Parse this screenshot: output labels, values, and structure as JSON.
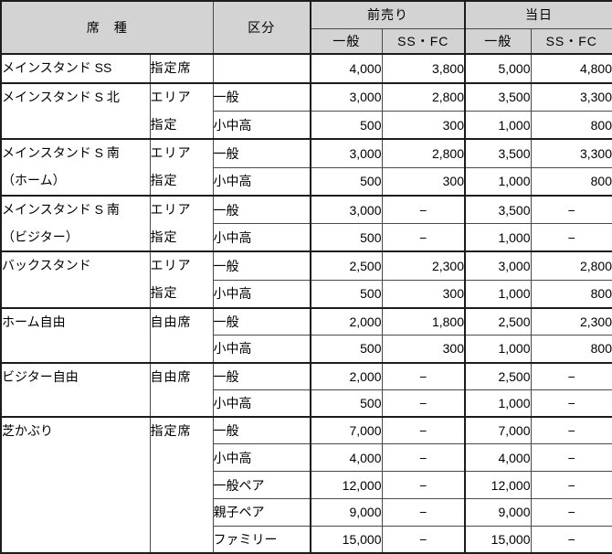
{
  "table": {
    "header": {
      "seat_type": "席　種",
      "category": "区分",
      "advance": "前売り",
      "same_day": "当日",
      "sub": {
        "general": "一般",
        "ss_fc": "SS・FC"
      }
    },
    "dash": "−",
    "groups": [
      {
        "seat": "メインスタンド SS",
        "type": "指定席",
        "rows": [
          {
            "category": "",
            "prices": [
              "4,000",
              "3,800",
              "5,000",
              "4,800"
            ]
          }
        ]
      },
      {
        "seat": "メインスタンド S 北",
        "type": "エリア\n指定",
        "rows": [
          {
            "category": "一般",
            "prices": [
              "3,000",
              "2,800",
              "3,500",
              "3,300"
            ]
          },
          {
            "category": "小中高",
            "prices": [
              "500",
              "300",
              "1,000",
              "800"
            ]
          }
        ]
      },
      {
        "seat": "メインスタンド S 南\n（ホーム）",
        "type": "エリア\n指定",
        "rows": [
          {
            "category": "一般",
            "prices": [
              "3,000",
              "2,800",
              "3,500",
              "3,300"
            ]
          },
          {
            "category": "小中高",
            "prices": [
              "500",
              "300",
              "1,000",
              "800"
            ]
          }
        ]
      },
      {
        "seat": "メインスタンド S 南\n（ビジター）",
        "type": "エリア\n指定",
        "rows": [
          {
            "category": "一般",
            "prices": [
              "3,000",
              "−",
              "3,500",
              "−"
            ]
          },
          {
            "category": "小中高",
            "prices": [
              "500",
              "−",
              "1,000",
              "−"
            ]
          }
        ]
      },
      {
        "seat": "バックスタンド",
        "type": "エリア\n指定",
        "rows": [
          {
            "category": "一般",
            "prices": [
              "2,500",
              "2,300",
              "3,000",
              "2,800"
            ]
          },
          {
            "category": "小中高",
            "prices": [
              "500",
              "300",
              "1,000",
              "800"
            ]
          }
        ]
      },
      {
        "seat": "ホーム自由",
        "type": "自由席",
        "rows": [
          {
            "category": "一般",
            "prices": [
              "2,000",
              "1,800",
              "2,500",
              "2,300"
            ]
          },
          {
            "category": "小中高",
            "prices": [
              "500",
              "300",
              "1,000",
              "800"
            ]
          }
        ]
      },
      {
        "seat": "ビジター自由",
        "type": "自由席",
        "rows": [
          {
            "category": "一般",
            "prices": [
              "2,000",
              "−",
              "2,500",
              "−"
            ]
          },
          {
            "category": "小中高",
            "prices": [
              "500",
              "−",
              "1,000",
              "−"
            ]
          }
        ]
      },
      {
        "seat": "芝かぶり",
        "type": "指定席",
        "rows": [
          {
            "category": "一般",
            "prices": [
              "7,000",
              "−",
              "7,000",
              "−"
            ]
          },
          {
            "category": "小中高",
            "prices": [
              "4,000",
              "−",
              "4,000",
              "−"
            ]
          },
          {
            "category": "一般ペア",
            "prices": [
              "12,000",
              "−",
              "12,000",
              "−"
            ]
          },
          {
            "category": "親子ペア",
            "prices": [
              "9,000",
              "−",
              "9,000",
              "−"
            ]
          },
          {
            "category": "ファミリー",
            "prices": [
              "15,000",
              "−",
              "15,000",
              "−"
            ]
          }
        ]
      }
    ]
  }
}
